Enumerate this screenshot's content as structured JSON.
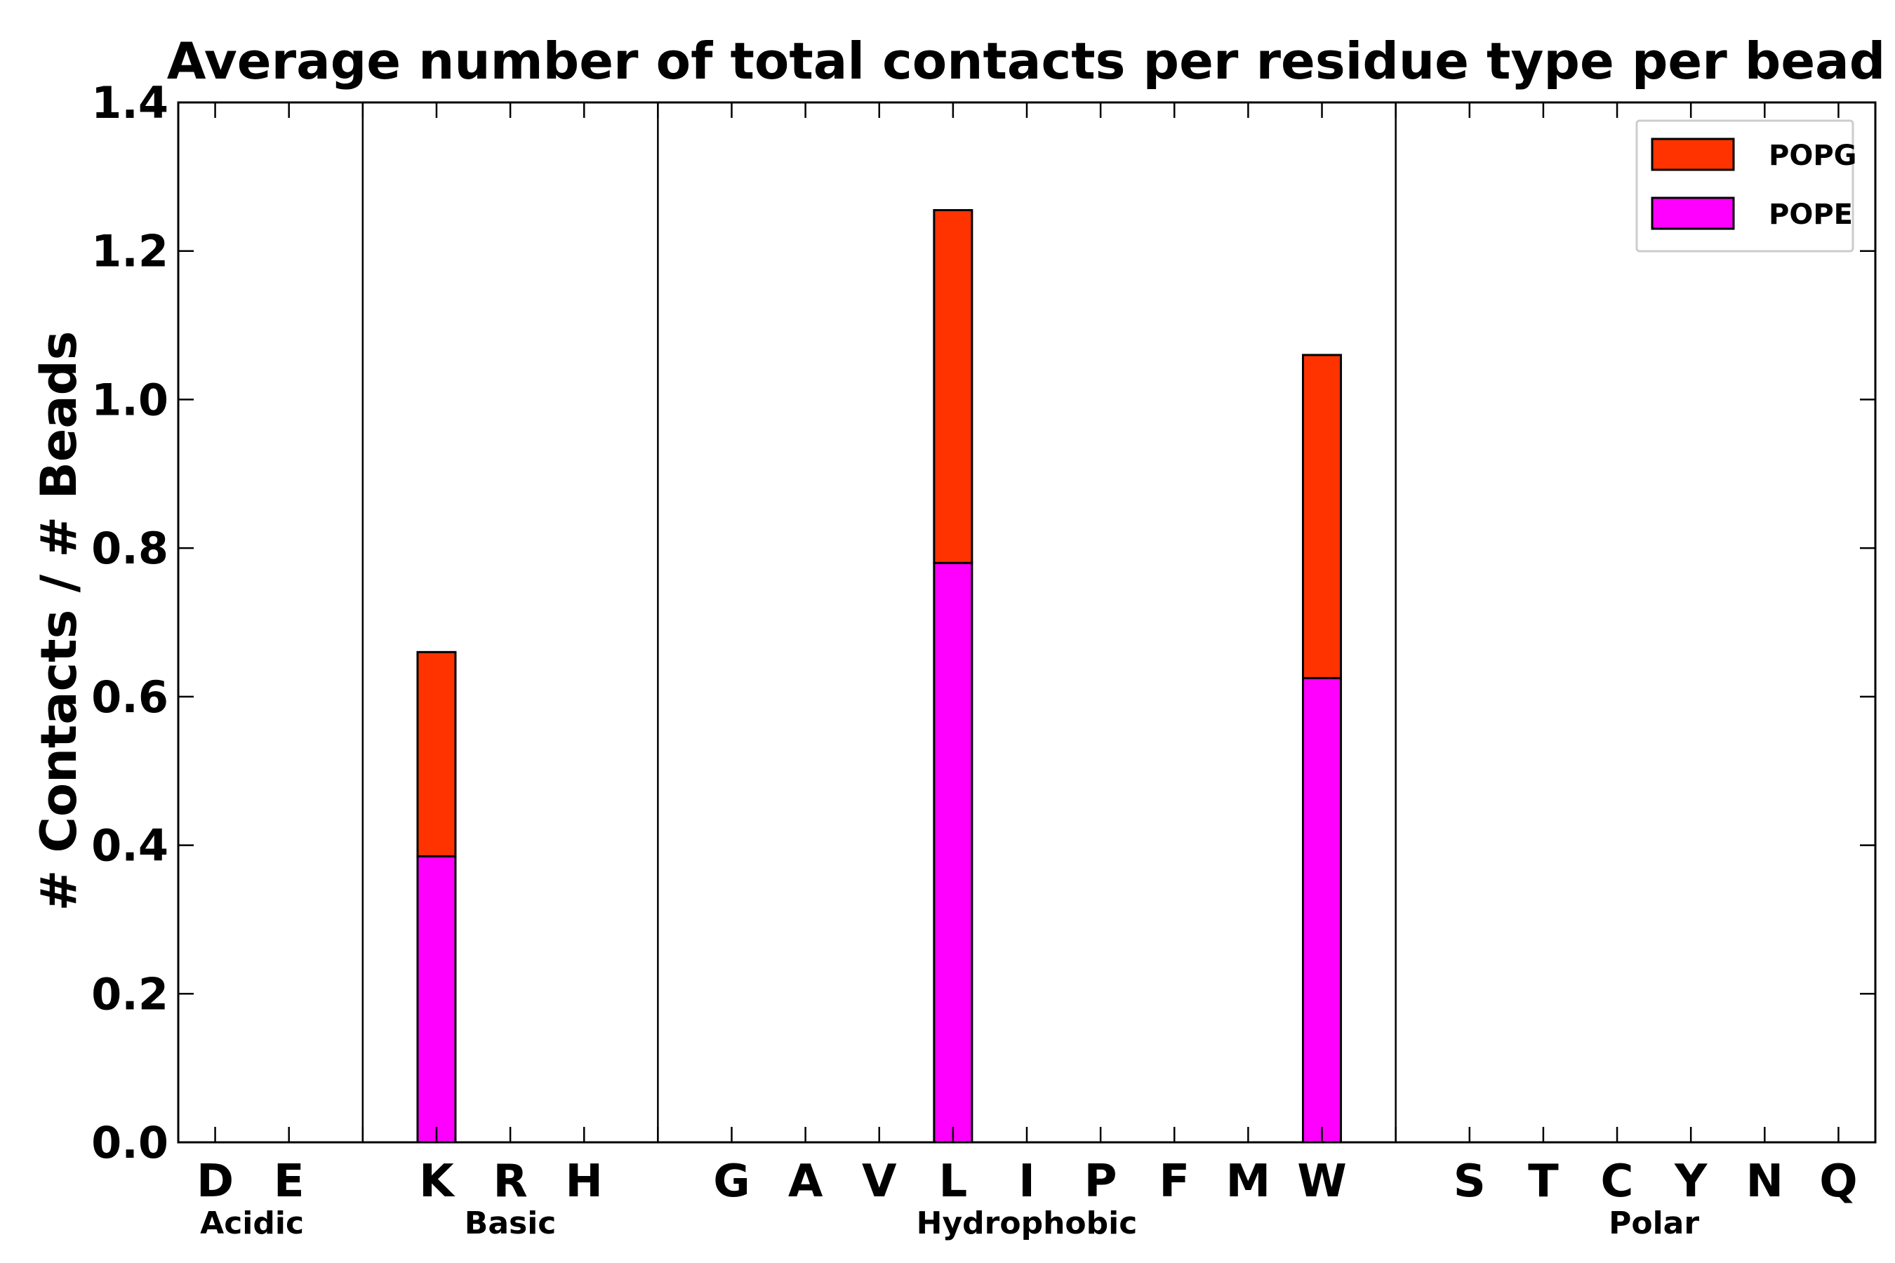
{
  "chart_data": {
    "type": "bar",
    "stacked": true,
    "title": "Average number of total contacts per residue type per bead",
    "xlabel": "",
    "ylabel": "# Contacts / # Beads",
    "ylim": [
      0,
      1.4
    ],
    "yticks": [
      "0.0",
      "0.2",
      "0.4",
      "0.6",
      "0.8",
      "1.0",
      "1.2",
      "1.4"
    ],
    "categories": [
      "D",
      "E",
      "",
      "K",
      "R",
      "H",
      "",
      "G",
      "A",
      "V",
      "L",
      "I",
      "P",
      "F",
      "M",
      "W",
      "",
      "S",
      "T",
      "C",
      "Y",
      "N",
      "Q"
    ],
    "series": [
      {
        "name": "POPE",
        "color": "#ff00ff",
        "values": [
          0,
          0,
          0,
          0.385,
          0,
          0,
          0,
          0,
          0,
          0,
          0.78,
          0,
          0,
          0,
          0,
          0.625,
          0,
          0,
          0,
          0,
          0,
          0,
          0
        ]
      },
      {
        "name": "POPG",
        "color": "#ff3300",
        "values": [
          0,
          0,
          0,
          0.275,
          0,
          0,
          0,
          0,
          0,
          0,
          0.475,
          0,
          0,
          0,
          0,
          0.435,
          0,
          0,
          0,
          0,
          0,
          0,
          0
        ]
      }
    ],
    "group_labels": [
      {
        "label": "Acidic",
        "span": [
          0,
          1
        ]
      },
      {
        "label": "Basic",
        "span": [
          3,
          5
        ]
      },
      {
        "label": "Hydrophobic",
        "span": [
          7,
          15
        ]
      },
      {
        "label": "Polar",
        "span": [
          17,
          22
        ]
      }
    ],
    "separators_after_category": [
      2,
      6,
      16
    ],
    "legend": {
      "position": "top-right",
      "entries": [
        {
          "label": "POPG",
          "color": "#ff3300"
        },
        {
          "label": "POPE",
          "color": "#ff00ff"
        }
      ]
    },
    "grid": false
  }
}
